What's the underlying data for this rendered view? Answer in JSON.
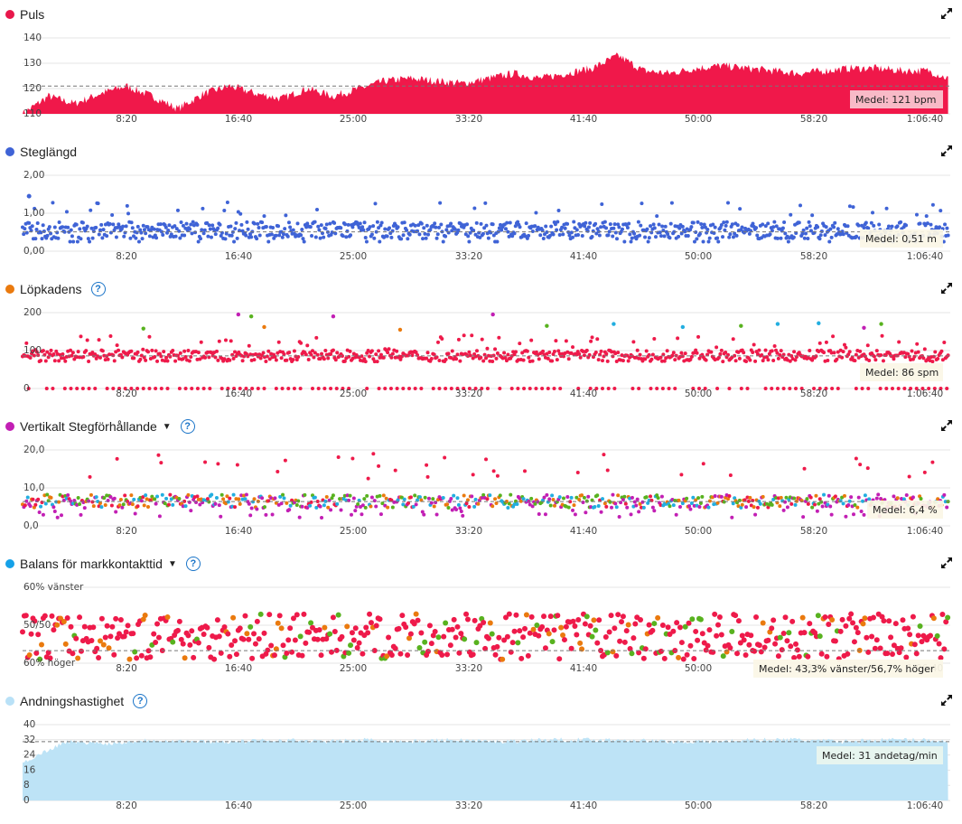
{
  "x_ticks": [
    "8:20",
    "16:40",
    "25:00",
    "33:20",
    "41:40",
    "50:00",
    "58:20",
    "1:06:40"
  ],
  "panels": [
    {
      "id": "puls",
      "title": "Puls",
      "dot_color": "#e8174b",
      "help": false,
      "caret": false,
      "yticks": [
        "140",
        "130",
        "120",
        "110"
      ],
      "mean_label": "Medel: 121 bpm"
    },
    {
      "id": "steglangd",
      "title": "Steglängd",
      "dot_color": "#3f63d6",
      "help": false,
      "caret": false,
      "yticks": [
        "2,00",
        "1,00",
        "0,00"
      ],
      "mean_label": "Medel: 0,51 m"
    },
    {
      "id": "lopkadens",
      "title": "Löpkadens",
      "dot_color": "#ea7a0e",
      "help": true,
      "caret": false,
      "yticks": [
        "200",
        "100",
        "0"
      ],
      "mean_label": "Medel: 86 spm"
    },
    {
      "id": "vertikalt",
      "title": "Vertikalt Stegförhållande",
      "dot_color": "#c21fb4",
      "help": true,
      "caret": true,
      "yticks": [
        "20,0",
        "10,0",
        "0,0"
      ],
      "mean_label": "Medel: 6,4 %"
    },
    {
      "id": "balans",
      "title": "Balans för markkontakttid",
      "dot_color": "#15a1e8",
      "help": true,
      "caret": true,
      "yticks": [
        "60% vänster",
        "50/50",
        "60% höger"
      ],
      "mean_label": "Medel: 43,3% vänster/56,7% höger"
    },
    {
      "id": "andning",
      "title": "Andningshastighet",
      "dot_color": "#b9e1f7",
      "help": true,
      "caret": false,
      "yticks": [
        "40",
        "32",
        "24",
        "16",
        "8",
        "0"
      ],
      "mean_label": "Medel: 31 andetag/min"
    }
  ],
  "colors": {
    "red": "#ee1a4a",
    "blue": "#3f63d6",
    "orange": "#ea7a0e",
    "green": "#58b21f",
    "cyan": "#22aee0",
    "magenta": "#c21fb4",
    "pink": "#f7a9b6",
    "resp_fill": "#bde3f6",
    "grid": "#e4e4e4",
    "mean_line": "#777777"
  },
  "chart_data": [
    {
      "type": "area",
      "title": "Puls",
      "x_range": [
        0,
        4300
      ],
      "ylim": [
        110,
        145
      ],
      "mean": 121,
      "x_tick_labels": [
        "8:20",
        "16:40",
        "25:00",
        "33:20",
        "41:40",
        "50:00",
        "58:20",
        "1:06:40"
      ],
      "y_tick_labels": [
        "140",
        "130",
        "120",
        "110"
      ],
      "x": [
        0,
        120,
        240,
        360,
        480,
        600,
        720,
        840,
        960,
        1080,
        1200,
        1320,
        1440,
        1560,
        1680,
        1800,
        1920,
        2040,
        2160,
        2280,
        2400,
        2520,
        2640,
        2760,
        2880,
        3000,
        3120,
        3240,
        3360,
        3480,
        3600,
        3720,
        3840,
        3960,
        4080,
        4200,
        4290
      ],
      "y": [
        110,
        117,
        114,
        118,
        121,
        117,
        112,
        118,
        121,
        118,
        116,
        120,
        117,
        120,
        123,
        124,
        123,
        122,
        124,
        126,
        124,
        126,
        128,
        133,
        127,
        126,
        128,
        129,
        128,
        127,
        126,
        127,
        128,
        128,
        127,
        127,
        124
      ]
    },
    {
      "type": "scatter",
      "title": "Steglängd",
      "x_range": [
        0,
        4300
      ],
      "ylim": [
        0,
        2
      ],
      "mean": 0.51,
      "x_tick_labels": [
        "8:20",
        "16:40",
        "25:00",
        "33:20",
        "41:40",
        "50:00",
        "58:20",
        "1:06:40"
      ],
      "y_tick_labels": [
        "2,00",
        "1,00",
        "0,00"
      ]
    },
    {
      "type": "scatter",
      "title": "Löpkadens",
      "x_range": [
        0,
        4300
      ],
      "ylim": [
        0,
        200
      ],
      "mean": 86,
      "x_tick_labels": [
        "8:20",
        "16:40",
        "25:00",
        "33:20",
        "41:40",
        "50:00",
        "58:20",
        "1:06:40"
      ],
      "y_tick_labels": [
        "200",
        "100",
        "0"
      ]
    },
    {
      "type": "scatter",
      "title": "Vertikalt Stegförhållande",
      "x_range": [
        0,
        4300
      ],
      "ylim": [
        0,
        20
      ],
      "mean": 6.4,
      "x_tick_labels": [
        "8:20",
        "16:40",
        "25:00",
        "33:20",
        "41:40",
        "50:00",
        "58:20",
        "1:06:40"
      ],
      "y_tick_labels": [
        "20,0",
        "10,0",
        "0,0"
      ]
    },
    {
      "type": "scatter",
      "title": "Balans för markkontakttid",
      "x_range": [
        0,
        4300
      ],
      "ylim": [
        -10,
        10
      ],
      "mean": -6.7,
      "x_tick_labels": [
        "8:20",
        "16:40",
        "25:00",
        "33:20",
        "41:40",
        "50:00",
        "58:20",
        "1:06:40"
      ],
      "y_tick_labels": [
        "60% vänster",
        "50/50",
        "60% höger"
      ]
    },
    {
      "type": "area",
      "title": "Andningshastighet",
      "x_range": [
        0,
        4300
      ],
      "ylim": [
        0,
        40
      ],
      "mean": 31,
      "x_tick_labels": [
        "8:20",
        "16:40",
        "25:00",
        "33:20",
        "41:40",
        "50:00",
        "58:20",
        "1:06:40"
      ],
      "y_tick_labels": [
        "40",
        "32",
        "24",
        "16",
        "8",
        "0"
      ],
      "x": [
        0,
        200,
        400,
        600,
        800,
        1000,
        1200,
        1400,
        1600,
        1800,
        2000,
        2200,
        2400,
        2600,
        2800,
        3000,
        3200,
        3400,
        3600,
        3800,
        4000,
        4200,
        4290
      ],
      "y": [
        20,
        31,
        30,
        32,
        31,
        31,
        32,
        31,
        32,
        31,
        32,
        31,
        32,
        32,
        32,
        31,
        31,
        32,
        32,
        31,
        32,
        32,
        31
      ]
    }
  ]
}
